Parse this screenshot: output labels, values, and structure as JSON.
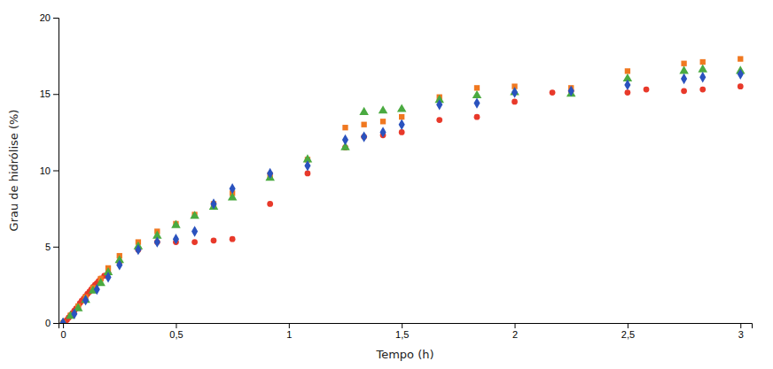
{
  "chart_data": {
    "type": "scatter",
    "xlabel": "Tempo (h)",
    "ylabel": "Grau de hidrólise (%)",
    "xlim": [
      -0.02,
      3.05
    ],
    "ylim": [
      0,
      20
    ],
    "xticks": [
      0,
      {
        "value": 0.5,
        "label": "0,5"
      },
      1,
      {
        "value": 1.5,
        "label": "1,5"
      },
      2,
      {
        "value": 2.5,
        "label": "2,5"
      },
      3
    ],
    "yticks": [
      0,
      5,
      10,
      15,
      20
    ],
    "grid": false,
    "series": [
      {
        "color": "#e8392a",
        "marker": "circle",
        "x": [
          0.0,
          0.008,
          0.017,
          0.025,
          0.033,
          0.042,
          0.05,
          0.058,
          0.067,
          0.075,
          0.083,
          0.092,
          0.1,
          0.108,
          0.117,
          0.125,
          0.133,
          0.142,
          0.15,
          0.158,
          0.167,
          0.183,
          0.2,
          0.25,
          0.333,
          0.417,
          0.5,
          0.583,
          0.667,
          0.75,
          0.917,
          1.083,
          1.25,
          1.333,
          1.417,
          1.5,
          1.667,
          1.833,
          2.0,
          2.167,
          2.25,
          2.5,
          2.583,
          2.75,
          2.833,
          3.0
        ],
        "values": [
          0.0,
          0.1,
          0.2,
          0.35,
          0.5,
          0.65,
          0.8,
          0.95,
          1.1,
          1.3,
          1.45,
          1.6,
          1.75,
          1.9,
          2.05,
          2.2,
          2.35,
          2.5,
          2.6,
          2.75,
          2.9,
          3.1,
          3.3,
          4.0,
          4.8,
          5.3,
          5.3,
          5.3,
          5.4,
          5.5,
          7.8,
          9.8,
          11.5,
          12.2,
          12.3,
          12.5,
          13.3,
          13.5,
          14.5,
          15.1,
          15.2,
          15.1,
          15.3,
          15.2,
          15.3,
          15.5
        ]
      },
      {
        "color": "#f07820",
        "marker": "square",
        "x": [
          0.0,
          0.033,
          0.067,
          0.1,
          0.133,
          0.167,
          0.2,
          0.25,
          0.333,
          0.417,
          0.5,
          0.583,
          0.667,
          0.75,
          0.917,
          1.083,
          1.25,
          1.333,
          1.417,
          1.5,
          1.667,
          1.833,
          2.0,
          2.25,
          2.5,
          2.75,
          2.833,
          3.0
        ],
        "values": [
          0.0,
          0.5,
          1.1,
          1.7,
          2.3,
          2.9,
          3.6,
          4.4,
          5.3,
          6.0,
          6.5,
          7.1,
          7.8,
          8.5,
          9.7,
          10.7,
          12.8,
          13.0,
          13.2,
          13.5,
          14.8,
          15.4,
          15.5,
          15.4,
          16.5,
          17.0,
          17.1,
          17.3
        ]
      },
      {
        "color": "#4aaa40",
        "marker": "triangle",
        "x": [
          0.0,
          0.033,
          0.067,
          0.1,
          0.133,
          0.167,
          0.2,
          0.25,
          0.333,
          0.417,
          0.5,
          0.583,
          0.667,
          0.75,
          0.917,
          1.083,
          1.25,
          1.333,
          1.417,
          1.5,
          1.667,
          1.833,
          2.0,
          2.25,
          2.5,
          2.75,
          2.833,
          3.0
        ],
        "values": [
          0.0,
          0.45,
          0.95,
          1.5,
          2.1,
          2.6,
          3.3,
          4.1,
          5.0,
          5.7,
          6.4,
          7.0,
          7.6,
          8.2,
          9.5,
          10.7,
          11.5,
          13.8,
          13.9,
          14.0,
          14.6,
          14.9,
          15.1,
          15.0,
          16.0,
          16.5,
          16.6,
          16.5
        ]
      },
      {
        "color": "#2a52be",
        "marker": "diamond",
        "x": [
          0.0,
          0.05,
          0.1,
          0.15,
          0.2,
          0.25,
          0.333,
          0.417,
          0.5,
          0.583,
          0.667,
          0.75,
          0.917,
          1.083,
          1.25,
          1.333,
          1.417,
          1.5,
          1.667,
          1.833,
          2.0,
          2.25,
          2.5,
          2.75,
          2.833,
          3.0
        ],
        "values": [
          0.0,
          0.6,
          1.5,
          2.2,
          3.0,
          3.8,
          4.8,
          5.3,
          5.5,
          6.0,
          7.8,
          8.8,
          9.8,
          10.3,
          12.0,
          12.2,
          12.5,
          13.0,
          14.3,
          14.4,
          15.1,
          15.2,
          15.6,
          16.0,
          16.1,
          16.3
        ]
      }
    ]
  }
}
